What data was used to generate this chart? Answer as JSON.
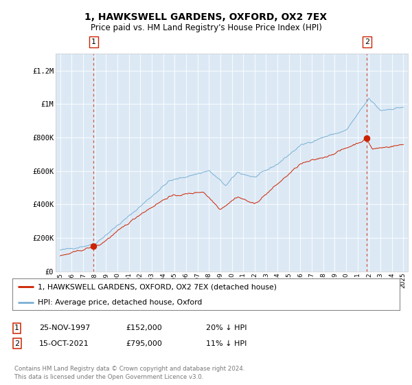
{
  "title": "1, HAWKSWELL GARDENS, OXFORD, OX2 7EX",
  "subtitle": "Price paid vs. HM Land Registry's House Price Index (HPI)",
  "plot_bg_color": "#dce9f5",
  "hpi_color": "#7ab0d4",
  "price_color": "#cc2200",
  "ylim": [
    0,
    1300000
  ],
  "yticks": [
    0,
    200000,
    400000,
    600000,
    800000,
    1000000,
    1200000
  ],
  "ytick_labels": [
    "£0",
    "£200K",
    "£400K",
    "£600K",
    "£800K",
    "£1M",
    "£1.2M"
  ],
  "sale1_year": 1997.9,
  "sale1_price": 152000,
  "sale2_year": 2021.79,
  "sale2_price": 795000,
  "legend_line1": "1, HAWKSWELL GARDENS, OXFORD, OX2 7EX (detached house)",
  "legend_line2": "HPI: Average price, detached house, Oxford",
  "footnote": "Contains HM Land Registry data © Crown copyright and database right 2024.\nThis data is licensed under the Open Government Licence v3.0.",
  "table_row1": [
    "1",
    "25-NOV-1997",
    "£152,000",
    "20% ↓ HPI"
  ],
  "table_row2": [
    "2",
    "15-OCT-2021",
    "£795,000",
    "11% ↓ HPI"
  ]
}
